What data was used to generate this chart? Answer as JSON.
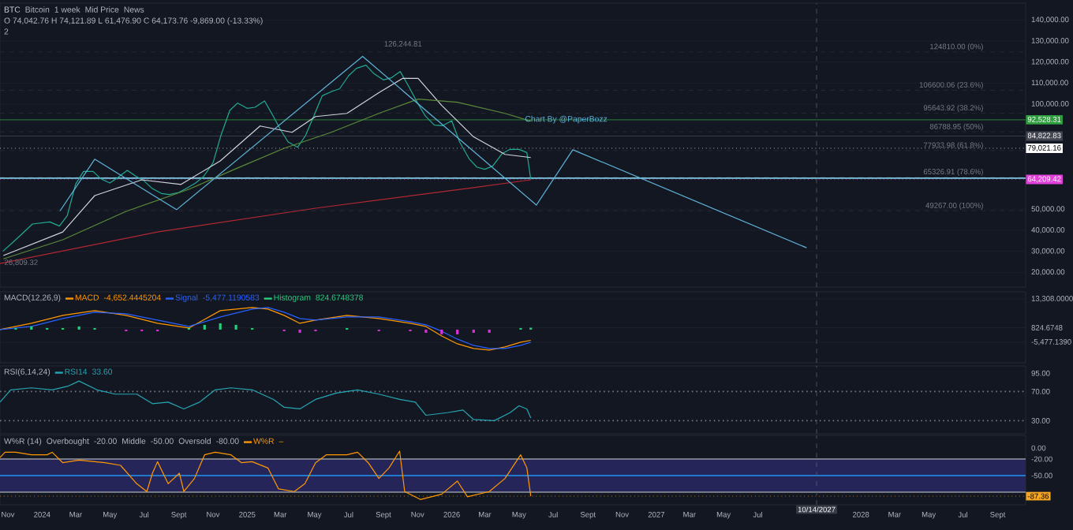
{
  "chart_data": [
    {
      "type": "line",
      "title": "BTC",
      "subtitle": "Bitcoin",
      "annotations": [
        "1 week",
        "Mid Price",
        "News",
        "O 74,042.76 H 74,121.89 L 61,476.90 C 64,173.76 -9,869.00 (-13.33%)",
        "2",
        "Chart By @PaperBozz",
        {
          "text": "126,244.81",
          "x": "2025-10-06",
          "y": 126244.81
        },
        {
          "text": "26,809.32",
          "x": "2023-10-23",
          "y": 26809.32
        }
      ],
      "xlim": [
        "2023-10-18",
        "2028-10-21"
      ],
      "ylim": [
        13000,
        148000
      ],
      "yticks": [
        {
          "value": 20000,
          "label": "20,000.00"
        },
        {
          "value": 30000,
          "label": "30,000.00"
        },
        {
          "value": 40000,
          "label": "40,000.00"
        },
        {
          "value": 50000,
          "label": "50,000.00"
        },
        {
          "value": 100000,
          "label": "100,000.00"
        },
        {
          "value": 110000,
          "label": "110,000.00"
        },
        {
          "value": 120000,
          "label": "120,000.00"
        },
        {
          "value": 130000,
          "label": "130,000.00"
        },
        {
          "value": 140000,
          "label": "140,000.00"
        }
      ],
      "tick_labels": "y",
      "grid": "y",
      "series": [
        {
          "color": "#22ab94",
          "x": [
            "2023-10-23",
            "2023-11-15",
            "2023-12-15",
            "2024-01-15",
            "2024-02-01",
            "2024-02-15",
            "2024-03-01",
            "2024-03-15",
            "2024-04-01",
            "2024-04-15",
            "2024-05-01",
            "2024-05-15",
            "2024-06-01",
            "2024-06-15",
            "2024-07-01",
            "2024-07-15",
            "2024-08-01",
            "2024-08-15",
            "2024-09-01",
            "2024-09-15",
            "2024-10-01",
            "2024-10-15",
            "2024-11-01",
            "2024-11-15",
            "2024-12-01",
            "2024-12-15",
            "2025-01-01",
            "2025-01-15",
            "2025-02-01",
            "2025-02-15",
            "2025-03-01",
            "2025-03-15",
            "2025-04-01",
            "2025-04-15",
            "2025-05-01",
            "2025-05-15",
            "2025-06-01",
            "2025-06-15",
            "2025-07-01",
            "2025-07-15",
            "2025-08-01",
            "2025-08-15",
            "2025-09-01",
            "2025-09-15",
            "2025-10-01",
            "2025-10-15",
            "2025-11-01",
            "2025-11-15",
            "2025-12-01",
            "2025-12-15",
            "2026-01-01",
            "2026-01-15",
            "2026-02-01",
            "2026-02-15",
            "2026-03-01",
            "2026-03-15",
            "2026-04-01",
            "2026-04-15",
            "2026-05-01",
            "2026-05-15",
            "2026-05-22"
          ],
          "values": [
            30000,
            35500,
            43000,
            44000,
            42000,
            47000,
            62000,
            68000,
            68000,
            64500,
            62500,
            65000,
            68500,
            66000,
            63500,
            60000,
            57500,
            57000,
            58000,
            60000,
            62500,
            65500,
            72000,
            85000,
            97000,
            100500,
            98000,
            98500,
            101500,
            95000,
            88000,
            82000,
            79500,
            85000,
            95000,
            104000,
            106000,
            107300,
            113500,
            117000,
            118500,
            114500,
            111500,
            112500,
            115500,
            109000,
            100500,
            94300,
            90000,
            89700,
            92000,
            82000,
            74000,
            70000,
            69000,
            70500,
            76500,
            78500,
            78500,
            77000,
            64174
          ]
        },
        {
          "color": "#d1d4dc",
          "x": [
            "2023-10-24",
            "2024-02-07",
            "2024-04-04",
            "2024-06-27",
            "2024-09-05",
            "2024-11-14",
            "2025-01-24",
            "2025-03-22",
            "2025-05-03",
            "2025-06-28",
            "2025-08-24",
            "2025-10-05",
            "2025-11-02",
            "2025-12-14",
            "2026-02-09",
            "2026-04-06",
            "2026-05-22"
          ],
          "values": [
            28000,
            39200,
            56500,
            64000,
            61800,
            73000,
            89600,
            86600,
            94100,
            95600,
            105400,
            112200,
            112200,
            99400,
            84400,
            76100,
            74600
          ]
        },
        {
          "color": "#5b8c3a",
          "x": [
            "2023-10-24",
            "2024-02-07",
            "2024-05-30",
            "2024-09-19",
            "2024-12-12",
            "2025-03-08",
            "2025-05-31",
            "2025-08-24",
            "2025-11-02",
            "2026-01-11",
            "2026-04-06",
            "2026-05-22"
          ],
          "values": [
            26400,
            35500,
            49000,
            59500,
            69300,
            79000,
            86600,
            95600,
            102400,
            100900,
            95600,
            91900
          ]
        },
        {
          "color": "#b22833",
          "x": [
            "2023-10-18",
            "2024-07-25",
            "2025-05-03",
            "2026-02-09",
            "2026-05-22"
          ],
          "values": [
            24200,
            39200,
            50500,
            60300,
            64000
          ]
        },
        {
          "color": "#5fb3d9",
          "x": [
            "2024-02-02",
            "2024-04-04",
            "2024-08-28",
            "2025-07-26",
            "2026-06-01",
            "2026-08-05",
            "2027-09-26"
          ],
          "values": [
            49200,
            73800,
            49800,
            122700,
            52000,
            78300,
            31700
          ]
        }
      ],
      "ref_lines": [
        {
          "axis": "y",
          "value": 124810,
          "label": "124810.00 (0%)",
          "color": "#2a2e39",
          "line_style": "dashed"
        },
        {
          "axis": "y",
          "value": 106600.06,
          "label": "106600.06 (23.6%)",
          "color": "#2a2e39",
          "line_style": "dashed"
        },
        {
          "axis": "y",
          "value": 95643.92,
          "label": "95643.92 (38.2%)",
          "color": "#2a2e39",
          "line_style": "dashed"
        },
        {
          "axis": "y",
          "value": 86788.95,
          "label": "86788.95 (50%)",
          "color": "#2a2e39",
          "line_style": "dashed"
        },
        {
          "axis": "y",
          "value": 77933.98,
          "label": "77933.98 (61.8%)",
          "color": "#2a2e39",
          "line_style": "dashed"
        },
        {
          "axis": "y",
          "value": 65326.91,
          "label": "65326.91 (78.6%)",
          "color": "#2a2e39",
          "line_style": "dashed"
        },
        {
          "axis": "y",
          "value": 49267,
          "label": "49267.00 (100%)",
          "color": "#2a2e39",
          "line_style": "dashed"
        },
        {
          "axis": "y",
          "value": 64800,
          "color": "#7ec8e3",
          "line_style": "solid"
        },
        {
          "axis": "y",
          "value": 92528.31,
          "label": "92,528.31",
          "color": "#2e9e3e",
          "line_style": "solid"
        },
        {
          "axis": "y",
          "value": 84822.83,
          "label": "84,822.83",
          "color": "#434651",
          "line_style": "solid"
        },
        {
          "axis": "y",
          "value": 79021.16,
          "label": "79,021.16",
          "color": "#ffffff",
          "line_style": "dotted"
        },
        {
          "axis": "y",
          "value": 64209.42,
          "label": "64,209.42",
          "color": "#e040d8",
          "line_style": "dotted"
        },
        {
          "axis": "x",
          "value": "2027-10-14",
          "color": "#5d606b",
          "line_style": "dashed"
        }
      ]
    },
    {
      "type": "line",
      "title": "MACD(12,26,9)",
      "legend": "top left",
      "annotations": [
        "-4,652.4445204",
        "-5,477.1190583",
        "824.6748378"
      ],
      "xlim": [
        "2023-10-18",
        "2028-10-21"
      ],
      "ylim": [
        -14400,
        16400
      ],
      "yticks": [
        {
          "value": -5477.139,
          "label": "-5,477.1390"
        },
        {
          "value": 824.6748,
          "label": "824.6748"
        },
        {
          "value": 13308,
          "label": "13,308.0000"
        }
      ],
      "tick_labels": "y",
      "grid": "y",
      "series": [
        {
          "name": "MACD",
          "color": "#ff9800",
          "x": [
            "2023-10-18",
            "2023-12-13",
            "2024-02-07",
            "2024-04-04",
            "2024-05-30",
            "2024-07-25",
            "2024-09-19",
            "2024-11-14",
            "2025-01-10",
            "2025-02-07",
            "2025-03-08",
            "2025-04-05",
            "2025-05-03",
            "2025-06-28",
            "2025-08-24",
            "2025-10-19",
            "2025-11-16",
            "2025-12-14",
            "2026-01-11",
            "2026-02-09",
            "2026-03-09",
            "2026-04-06",
            "2026-05-04",
            "2026-05-22"
          ],
          "values": [
            0,
            2740,
            6165,
            8220,
            6165,
            2740,
            685,
            8220,
            9590,
            8905,
            6165,
            2740,
            4110,
            6165,
            4795,
            2740,
            1370,
            -2740,
            -6165,
            -8220,
            -8905,
            -7535,
            -5480,
            -4652
          ]
        },
        {
          "name": "Signal",
          "color": "#2962ff",
          "x": [
            "2023-10-18",
            "2023-12-13",
            "2024-02-07",
            "2024-04-04",
            "2024-05-30",
            "2024-07-25",
            "2024-09-19",
            "2024-11-14",
            "2025-01-10",
            "2025-02-07",
            "2025-03-08",
            "2025-04-05",
            "2025-05-03",
            "2025-06-28",
            "2025-08-24",
            "2025-10-19",
            "2025-11-16",
            "2025-12-14",
            "2026-01-11",
            "2026-02-09",
            "2026-03-09",
            "2026-04-06",
            "2026-05-04",
            "2026-05-22"
          ],
          "values": [
            0,
            1370,
            4795,
            7535,
            6850,
            4110,
            1370,
            5480,
            8905,
            9590,
            7535,
            4795,
            4110,
            5480,
            5480,
            3425,
            2055,
            -685,
            -4110,
            -6850,
            -8220,
            -8220,
            -6850,
            -5477
          ]
        },
        {
          "name": "Histogram",
          "type": "bar",
          "color": "#26d07c",
          "x": [
            "2023-10-18",
            "2023-11-15",
            "2023-12-13",
            "2024-01-10",
            "2024-02-07",
            "2024-03-07",
            "2024-04-04",
            "2024-05-02",
            "2024-05-30",
            "2024-06-27",
            "2024-07-25",
            "2024-08-22",
            "2024-09-19",
            "2024-10-17",
            "2024-11-14",
            "2024-12-12",
            "2025-01-10",
            "2025-02-07",
            "2025-03-08",
            "2025-04-05",
            "2025-05-03",
            "2025-05-31",
            "2025-06-28",
            "2025-07-26",
            "2025-08-24",
            "2025-09-21",
            "2025-10-19",
            "2025-11-16",
            "2025-12-14",
            "2026-01-11",
            "2026-02-09",
            "2026-03-09",
            "2026-04-06",
            "2026-05-04",
            "2026-05-22"
          ],
          "values": [
            0,
            685,
            1370,
            685,
            685,
            1370,
            685,
            0,
            -685,
            -685,
            -685,
            0,
            685,
            2055,
            2740,
            2055,
            685,
            0,
            -685,
            -1370,
            -685,
            0,
            685,
            0,
            -685,
            0,
            -685,
            -1370,
            -2055,
            -2055,
            -1370,
            -1370,
            0,
            685,
            825
          ],
          "colors": [
            "#26d07c",
            "#26d07c",
            "#26d07c",
            "#26d07c",
            "#26d07c",
            "#26d07c",
            "#26d07c",
            "#26d07c",
            "#d633d6",
            "#d633d6",
            "#d633d6",
            "#26d07c",
            "#26d07c",
            "#26d07c",
            "#26d07c",
            "#26d07c",
            "#26d07c",
            "#26d07c",
            "#d633d6",
            "#d633d6",
            "#d633d6",
            "#26d07c",
            "#26d07c",
            "#26d07c",
            "#d633d6",
            "#26d07c",
            "#d633d6",
            "#d633d6",
            "#d633d6",
            "#d633d6",
            "#d633d6",
            "#d633d6",
            "#26d07c",
            "#26d07c",
            "#26d07c"
          ]
        }
      ],
      "ref_lines": [
        {
          "axis": "x",
          "value": "2027-10-14",
          "color": "#5d606b",
          "line_style": "dashed"
        }
      ]
    },
    {
      "type": "line",
      "title": "RSI(6,14,24)",
      "legend": "top left",
      "annotations": [
        "33.60"
      ],
      "xlim": [
        "2023-10-18",
        "2028-10-21"
      ],
      "ylim": [
        12,
        105
      ],
      "yticks": [
        {
          "value": 30,
          "label": "30.00"
        },
        {
          "value": 70,
          "label": "70.00"
        },
        {
          "value": 95,
          "label": "95.00"
        }
      ],
      "tick_labels": "y",
      "series": [
        {
          "name": "RSI14",
          "color": "#26a6b4",
          "x": [
            "2023-10-18",
            "2023-11-06",
            "2023-12-13",
            "2024-01-19",
            "2024-02-16",
            "2024-03-07",
            "2024-04-08",
            "2024-05-11",
            "2024-06-18",
            "2024-07-16",
            "2024-08-13",
            "2024-09-10",
            "2024-10-08",
            "2024-11-05",
            "2024-12-03",
            "2025-01-10",
            "2025-02-17",
            "2025-03-08",
            "2025-04-05",
            "2025-05-03",
            "2025-06-09",
            "2025-07-17",
            "2025-08-24",
            "2025-09-30",
            "2025-10-28",
            "2025-11-16",
            "2025-12-24",
            "2026-01-21",
            "2026-02-09",
            "2026-03-18",
            "2026-04-15",
            "2026-05-01",
            "2026-05-15",
            "2026-05-22"
          ],
          "values": [
            55.4,
            72.2,
            75,
            72.2,
            77.2,
            84.3,
            72.2,
            66.3,
            66.3,
            53.3,
            55.4,
            46.1,
            55.4,
            72.2,
            75,
            72.2,
            59.1,
            48.3,
            46.1,
            59.1,
            67.8,
            72.2,
            66.3,
            59.1,
            55.4,
            37.4,
            40.9,
            44.6,
            31.5,
            30,
            40.9,
            50.4,
            46.1,
            33.6
          ]
        }
      ],
      "ref_lines": [
        {
          "axis": "y",
          "value": 70,
          "color": "#787b86",
          "line_style": "dotted"
        },
        {
          "axis": "y",
          "value": 30,
          "color": "#787b86",
          "line_style": "dotted"
        },
        {
          "axis": "x",
          "value": "2027-10-14",
          "color": "#5d606b",
          "line_style": "dashed"
        }
      ]
    },
    {
      "type": "line",
      "title": "W%R (14)",
      "legend": "top left",
      "annotations": [
        "Overbought",
        "-20.00",
        "Middle",
        "-50.00",
        "Oversold",
        "-80.00",
        "–"
      ],
      "xlim": [
        "2023-10-18",
        "2028-10-21"
      ],
      "ylim": [
        -103,
        23
      ],
      "yticks": [
        {
          "value": -50,
          "label": "-50.00"
        },
        {
          "value": -20,
          "label": "-20.00"
        },
        {
          "value": 0,
          "label": "0.00"
        }
      ],
      "xticks": [
        {
          "value": "2023-11-01",
          "label": "Nov"
        },
        {
          "value": "2024-01-01",
          "label": "2024"
        },
        {
          "value": "2024-03-01",
          "label": "Mar"
        },
        {
          "value": "2024-05-01",
          "label": "May"
        },
        {
          "value": "2024-07-01",
          "label": "Jul"
        },
        {
          "value": "2024-09-01",
          "label": "Sept"
        },
        {
          "value": "2024-11-01",
          "label": "Nov"
        },
        {
          "value": "2025-01-01",
          "label": "2025"
        },
        {
          "value": "2025-03-01",
          "label": "Mar"
        },
        {
          "value": "2025-05-01",
          "label": "May"
        },
        {
          "value": "2025-07-01",
          "label": "Jul"
        },
        {
          "value": "2025-09-01",
          "label": "Sept"
        },
        {
          "value": "2025-11-01",
          "label": "Nov"
        },
        {
          "value": "2026-01-01",
          "label": "2026"
        },
        {
          "value": "2026-03-01",
          "label": "Mar"
        },
        {
          "value": "2026-05-01",
          "label": "May"
        },
        {
          "value": "2026-07-01",
          "label": "Jul"
        },
        {
          "value": "2026-09-01",
          "label": "Sept"
        },
        {
          "value": "2026-11-01",
          "label": "Nov"
        },
        {
          "value": "2027-01-01",
          "label": "2027"
        },
        {
          "value": "2027-03-01",
          "label": "Mar"
        },
        {
          "value": "2027-05-01",
          "label": "May"
        },
        {
          "value": "2027-07-01",
          "label": "Jul"
        },
        {
          "value": "2028-01-01",
          "label": "2028"
        },
        {
          "value": "2028-03-01",
          "label": "Mar"
        },
        {
          "value": "2028-05-01",
          "label": "May"
        },
        {
          "value": "2028-07-01",
          "label": "Jul"
        },
        {
          "value": "2028-09-01",
          "label": "Sept"
        }
      ],
      "series": [
        {
          "name": "W%R",
          "color": "#ff9800",
          "x": [
            "2023-10-18",
            "2023-10-27",
            "2023-11-15",
            "2023-12-13",
            "2024-01-10",
            "2024-01-19",
            "2024-02-07",
            "2024-03-07",
            "2024-04-22",
            "2024-05-20",
            "2024-06-18",
            "2024-07-06",
            "2024-07-16",
            "2024-07-25",
            "2024-08-13",
            "2024-09-02",
            "2024-09-10",
            "2024-09-29",
            "2024-10-17",
            "2024-11-05",
            "2024-12-03",
            "2024-12-22",
            "2025-01-10",
            "2025-02-07",
            "2025-02-26",
            "2025-03-26",
            "2025-04-14",
            "2025-05-03",
            "2025-05-22",
            "2025-06-28",
            "2025-07-17",
            "2025-08-05",
            "2025-08-24",
            "2025-09-11",
            "2025-09-30",
            "2025-10-09",
            "2025-11-06",
            "2025-12-14",
            "2026-01-11",
            "2026-01-29",
            "2026-03-09",
            "2026-04-06",
            "2026-05-04",
            "2026-05-15",
            "2026-05-22"
          ],
          "values": [
            -17.1,
            -7.7,
            -7.7,
            -12.3,
            -12.3,
            -7.7,
            -26.7,
            -22,
            -26.7,
            -31.4,
            -64.8,
            -79,
            -45.7,
            -24.8,
            -64.8,
            -45.7,
            -79,
            -55.2,
            -12.3,
            -7.7,
            -12.3,
            -26.7,
            -24.8,
            -36.2,
            -74.3,
            -79,
            -64.8,
            -26.7,
            -12.3,
            -12.3,
            -7.7,
            -26.7,
            -55.2,
            -36.2,
            -5.7,
            -79,
            -93.4,
            -83.8,
            -60,
            -88.6,
            -79,
            -55.2,
            -12.3,
            -36.2,
            -87.36
          ]
        }
      ],
      "bands": [
        {
          "axis": "y",
          "from": -80,
          "to": -20,
          "color": "#25255a"
        }
      ],
      "ref_lines": [
        {
          "axis": "y",
          "value": -20,
          "color": "#9598a1",
          "line_style": "solid"
        },
        {
          "axis": "y",
          "value": -50,
          "color": "#2196f3",
          "line_style": "solid"
        },
        {
          "axis": "y",
          "value": -80,
          "color": "#9598a1",
          "line_style": "solid"
        },
        {
          "axis": "y",
          "value": -87.36,
          "label": "-87.36",
          "color": "#f5a623",
          "line_style": "dotted"
        },
        {
          "axis": "x",
          "value": "2027-10-14",
          "label": "10/14/2027",
          "color": "#5d606b",
          "line_style": "dashed"
        }
      ]
    }
  ]
}
